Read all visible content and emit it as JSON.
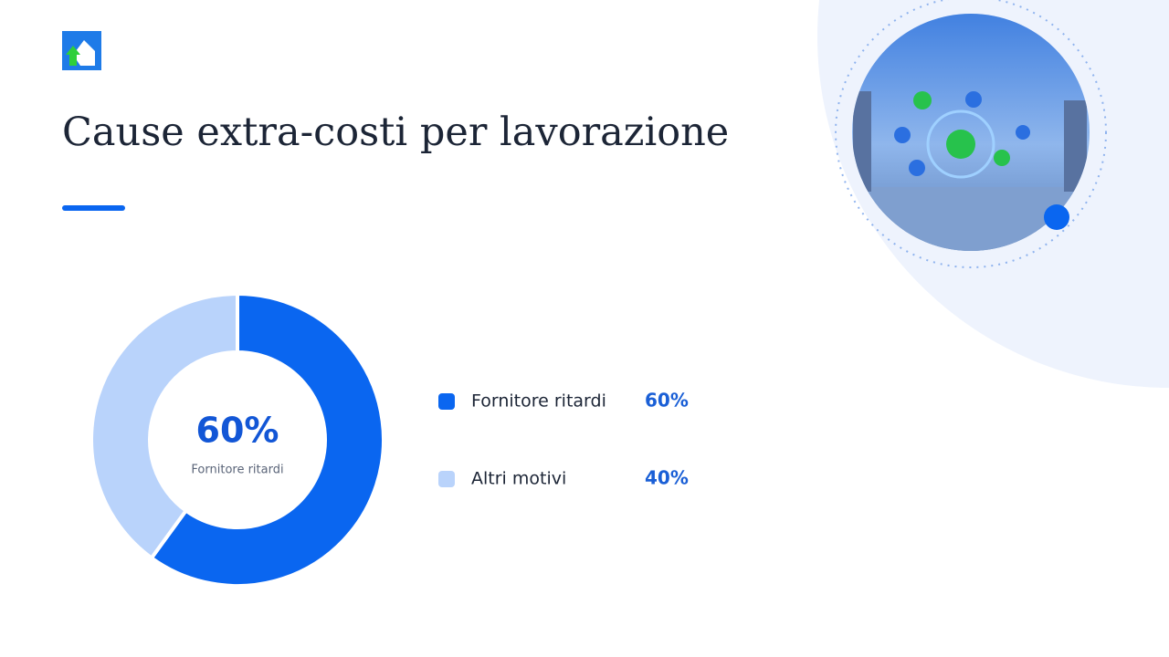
{
  "chart_data": {
    "type": "pie",
    "title": "Cause extra-costi per lavorazione",
    "categories": [
      "Fornitore ritardi",
      "Altri motivi"
    ],
    "values": [
      60,
      40
    ],
    "value_labels": [
      "60%",
      "40%"
    ],
    "colors": [
      "#0a66f0",
      "#b9d3fb"
    ]
  }
}
